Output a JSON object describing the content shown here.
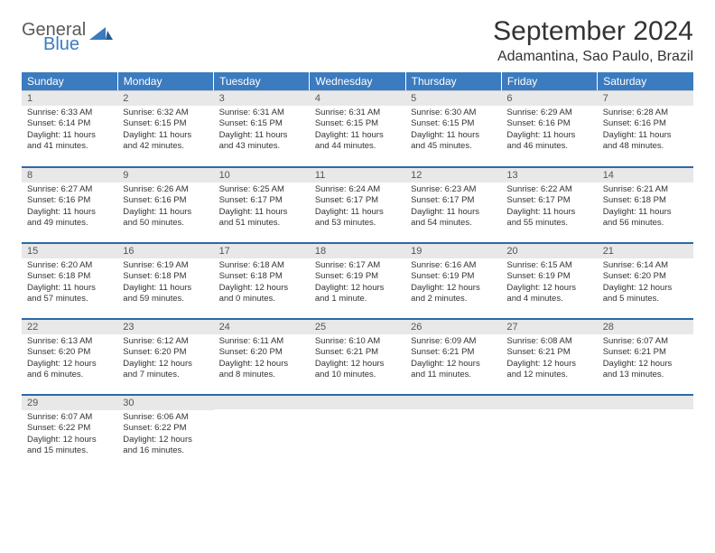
{
  "logo": {
    "word1": "General",
    "word2": "Blue"
  },
  "title": "September 2024",
  "location": "Adamantina, Sao Paulo, Brazil",
  "colors": {
    "header_bg": "#3b7bbf",
    "header_text": "#ffffff",
    "daynum_bg": "#e8e8e8",
    "daynum_text": "#555555",
    "body_text": "#333333",
    "row_separator": "#2a6aa8",
    "logo_gray": "#5a5a5a",
    "logo_blue": "#3b7bbf"
  },
  "weekdays": [
    "Sunday",
    "Monday",
    "Tuesday",
    "Wednesday",
    "Thursday",
    "Friday",
    "Saturday"
  ],
  "weeks": [
    [
      {
        "n": "1",
        "sr": "Sunrise: 6:33 AM",
        "ss": "Sunset: 6:14 PM",
        "dl": "Daylight: 11 hours and 41 minutes."
      },
      {
        "n": "2",
        "sr": "Sunrise: 6:32 AM",
        "ss": "Sunset: 6:15 PM",
        "dl": "Daylight: 11 hours and 42 minutes."
      },
      {
        "n": "3",
        "sr": "Sunrise: 6:31 AM",
        "ss": "Sunset: 6:15 PM",
        "dl": "Daylight: 11 hours and 43 minutes."
      },
      {
        "n": "4",
        "sr": "Sunrise: 6:31 AM",
        "ss": "Sunset: 6:15 PM",
        "dl": "Daylight: 11 hours and 44 minutes."
      },
      {
        "n": "5",
        "sr": "Sunrise: 6:30 AM",
        "ss": "Sunset: 6:15 PM",
        "dl": "Daylight: 11 hours and 45 minutes."
      },
      {
        "n": "6",
        "sr": "Sunrise: 6:29 AM",
        "ss": "Sunset: 6:16 PM",
        "dl": "Daylight: 11 hours and 46 minutes."
      },
      {
        "n": "7",
        "sr": "Sunrise: 6:28 AM",
        "ss": "Sunset: 6:16 PM",
        "dl": "Daylight: 11 hours and 48 minutes."
      }
    ],
    [
      {
        "n": "8",
        "sr": "Sunrise: 6:27 AM",
        "ss": "Sunset: 6:16 PM",
        "dl": "Daylight: 11 hours and 49 minutes."
      },
      {
        "n": "9",
        "sr": "Sunrise: 6:26 AM",
        "ss": "Sunset: 6:16 PM",
        "dl": "Daylight: 11 hours and 50 minutes."
      },
      {
        "n": "10",
        "sr": "Sunrise: 6:25 AM",
        "ss": "Sunset: 6:17 PM",
        "dl": "Daylight: 11 hours and 51 minutes."
      },
      {
        "n": "11",
        "sr": "Sunrise: 6:24 AM",
        "ss": "Sunset: 6:17 PM",
        "dl": "Daylight: 11 hours and 53 minutes."
      },
      {
        "n": "12",
        "sr": "Sunrise: 6:23 AM",
        "ss": "Sunset: 6:17 PM",
        "dl": "Daylight: 11 hours and 54 minutes."
      },
      {
        "n": "13",
        "sr": "Sunrise: 6:22 AM",
        "ss": "Sunset: 6:17 PM",
        "dl": "Daylight: 11 hours and 55 minutes."
      },
      {
        "n": "14",
        "sr": "Sunrise: 6:21 AM",
        "ss": "Sunset: 6:18 PM",
        "dl": "Daylight: 11 hours and 56 minutes."
      }
    ],
    [
      {
        "n": "15",
        "sr": "Sunrise: 6:20 AM",
        "ss": "Sunset: 6:18 PM",
        "dl": "Daylight: 11 hours and 57 minutes."
      },
      {
        "n": "16",
        "sr": "Sunrise: 6:19 AM",
        "ss": "Sunset: 6:18 PM",
        "dl": "Daylight: 11 hours and 59 minutes."
      },
      {
        "n": "17",
        "sr": "Sunrise: 6:18 AM",
        "ss": "Sunset: 6:18 PM",
        "dl": "Daylight: 12 hours and 0 minutes."
      },
      {
        "n": "18",
        "sr": "Sunrise: 6:17 AM",
        "ss": "Sunset: 6:19 PM",
        "dl": "Daylight: 12 hours and 1 minute."
      },
      {
        "n": "19",
        "sr": "Sunrise: 6:16 AM",
        "ss": "Sunset: 6:19 PM",
        "dl": "Daylight: 12 hours and 2 minutes."
      },
      {
        "n": "20",
        "sr": "Sunrise: 6:15 AM",
        "ss": "Sunset: 6:19 PM",
        "dl": "Daylight: 12 hours and 4 minutes."
      },
      {
        "n": "21",
        "sr": "Sunrise: 6:14 AM",
        "ss": "Sunset: 6:20 PM",
        "dl": "Daylight: 12 hours and 5 minutes."
      }
    ],
    [
      {
        "n": "22",
        "sr": "Sunrise: 6:13 AM",
        "ss": "Sunset: 6:20 PM",
        "dl": "Daylight: 12 hours and 6 minutes."
      },
      {
        "n": "23",
        "sr": "Sunrise: 6:12 AM",
        "ss": "Sunset: 6:20 PM",
        "dl": "Daylight: 12 hours and 7 minutes."
      },
      {
        "n": "24",
        "sr": "Sunrise: 6:11 AM",
        "ss": "Sunset: 6:20 PM",
        "dl": "Daylight: 12 hours and 8 minutes."
      },
      {
        "n": "25",
        "sr": "Sunrise: 6:10 AM",
        "ss": "Sunset: 6:21 PM",
        "dl": "Daylight: 12 hours and 10 minutes."
      },
      {
        "n": "26",
        "sr": "Sunrise: 6:09 AM",
        "ss": "Sunset: 6:21 PM",
        "dl": "Daylight: 12 hours and 11 minutes."
      },
      {
        "n": "27",
        "sr": "Sunrise: 6:08 AM",
        "ss": "Sunset: 6:21 PM",
        "dl": "Daylight: 12 hours and 12 minutes."
      },
      {
        "n": "28",
        "sr": "Sunrise: 6:07 AM",
        "ss": "Sunset: 6:21 PM",
        "dl": "Daylight: 12 hours and 13 minutes."
      }
    ],
    [
      {
        "n": "29",
        "sr": "Sunrise: 6:07 AM",
        "ss": "Sunset: 6:22 PM",
        "dl": "Daylight: 12 hours and 15 minutes."
      },
      {
        "n": "30",
        "sr": "Sunrise: 6:06 AM",
        "ss": "Sunset: 6:22 PM",
        "dl": "Daylight: 12 hours and 16 minutes."
      },
      null,
      null,
      null,
      null,
      null
    ]
  ]
}
